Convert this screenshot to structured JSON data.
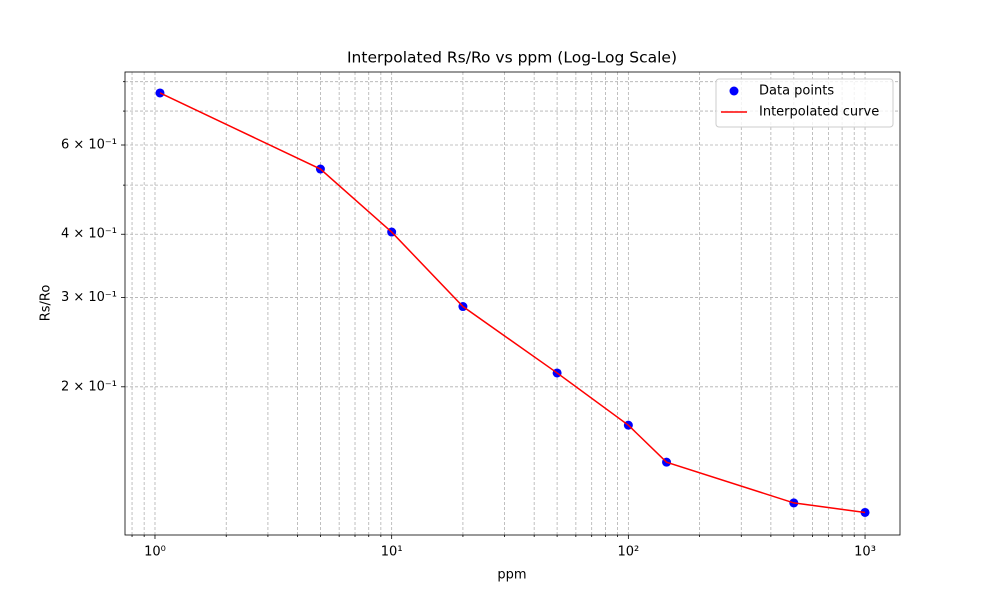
{
  "chart_data": {
    "type": "line",
    "title": "Interpolated Rs/Ro vs ppm (Log-Log Scale)",
    "x_label": "ppm",
    "y_label": "Rs/Ro",
    "x": [
      1.05,
      5,
      10,
      20,
      50,
      100,
      145,
      500,
      1000
    ],
    "series": [
      {
        "name": "Data points",
        "kind": "scatter",
        "color": "#0000ff",
        "values": [
          0.76,
          0.538,
          0.404,
          0.288,
          0.213,
          0.168,
          0.142,
          0.118,
          0.113
        ]
      },
      {
        "name": "Interpolated curve",
        "kind": "line",
        "color": "#ff0000",
        "values": [
          0.76,
          0.538,
          0.404,
          0.288,
          0.213,
          0.168,
          0.142,
          0.118,
          0.113
        ]
      }
    ],
    "xscale": "log",
    "yscale": "log",
    "xlim": [
      0.747,
      1405
    ],
    "ylim": [
      0.102,
      0.836
    ],
    "xticks": [
      {
        "value": 1,
        "label": "10⁰"
      },
      {
        "value": 10,
        "label": "10¹"
      },
      {
        "value": 100,
        "label": "10²"
      },
      {
        "value": 1000,
        "label": "10³"
      }
    ],
    "xminorticks": [
      0.8,
      0.9,
      2,
      3,
      4,
      5,
      6,
      7,
      8,
      9,
      20,
      30,
      40,
      50,
      60,
      70,
      80,
      90,
      200,
      300,
      400,
      500,
      600,
      700,
      800,
      900
    ],
    "yticks": [
      {
        "value": 0.2,
        "label": "2 × 10⁻¹"
      },
      {
        "value": 0.3,
        "label": "3 × 10⁻¹"
      },
      {
        "value": 0.4,
        "label": "4 × 10⁻¹"
      },
      {
        "value": 0.6,
        "label": "6 × 10⁻¹"
      }
    ],
    "yminorticks": [
      0.5,
      0.7,
      0.8
    ],
    "grid": true,
    "legend": "upper right"
  }
}
